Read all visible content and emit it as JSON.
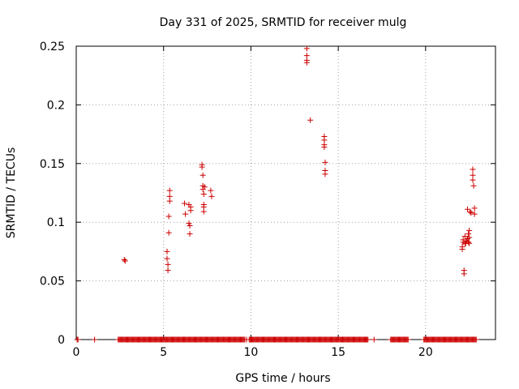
{
  "chart_data": {
    "type": "scatter",
    "title": "Day 331 of 2025, SRMTID for receiver mulg",
    "xlabel": "GPS time / hours",
    "ylabel": "SRMTID / TECUs",
    "xlim": [
      0,
      24
    ],
    "ylim": [
      0,
      0.25
    ],
    "xticks": [
      0,
      5,
      10,
      15,
      20
    ],
    "xtick_labels": [
      "0",
      "5",
      "10",
      "15",
      "20"
    ],
    "yticks": [
      0,
      0.05,
      0.1,
      0.15,
      0.2,
      0.25
    ],
    "ytick_labels": [
      "0",
      "0.05",
      "0.1",
      "0.15",
      "0.2",
      "0.25"
    ],
    "grid": true,
    "marker": "+",
    "color": "#cc0000",
    "series": [
      {
        "name": "SRMTID",
        "points": [
          [
            2.75,
            0.068
          ],
          [
            2.8,
            0.067
          ],
          [
            5.2,
            0.075
          ],
          [
            5.2,
            0.069
          ],
          [
            5.25,
            0.064
          ],
          [
            5.25,
            0.059
          ],
          [
            5.3,
            0.091
          ],
          [
            5.3,
            0.105
          ],
          [
            5.35,
            0.118
          ],
          [
            5.35,
            0.122
          ],
          [
            5.35,
            0.127
          ],
          [
            6.2,
            0.116
          ],
          [
            6.25,
            0.107
          ],
          [
            6.45,
            0.115
          ],
          [
            6.45,
            0.099
          ],
          [
            6.5,
            0.097
          ],
          [
            6.5,
            0.09
          ],
          [
            6.55,
            0.113
          ],
          [
            6.55,
            0.11
          ],
          [
            7.2,
            0.149
          ],
          [
            7.2,
            0.147
          ],
          [
            7.25,
            0.14
          ],
          [
            7.25,
            0.131
          ],
          [
            7.25,
            0.128
          ],
          [
            7.3,
            0.124
          ],
          [
            7.3,
            0.115
          ],
          [
            7.3,
            0.113
          ],
          [
            7.3,
            0.109
          ],
          [
            7.35,
            0.13
          ],
          [
            7.7,
            0.127
          ],
          [
            7.75,
            0.122
          ],
          [
            13.2,
            0.248
          ],
          [
            13.2,
            0.242
          ],
          [
            13.2,
            0.238
          ],
          [
            13.2,
            0.236
          ],
          [
            13.4,
            0.187
          ],
          [
            14.2,
            0.173
          ],
          [
            14.2,
            0.17
          ],
          [
            14.2,
            0.166
          ],
          [
            14.2,
            0.164
          ],
          [
            14.25,
            0.151
          ],
          [
            14.25,
            0.144
          ],
          [
            14.25,
            0.141
          ],
          [
            22.1,
            0.079
          ],
          [
            22.1,
            0.077
          ],
          [
            22.15,
            0.083
          ],
          [
            22.15,
            0.085
          ],
          [
            22.2,
            0.059
          ],
          [
            22.2,
            0.056
          ],
          [
            22.25,
            0.082
          ],
          [
            22.25,
            0.088
          ],
          [
            22.3,
            0.082
          ],
          [
            22.35,
            0.084
          ],
          [
            22.4,
            0.111
          ],
          [
            22.4,
            0.086
          ],
          [
            22.45,
            0.083
          ],
          [
            22.45,
            0.09
          ],
          [
            22.5,
            0.093
          ],
          [
            22.5,
            0.087
          ],
          [
            22.5,
            0.082
          ],
          [
            22.55,
            0.109
          ],
          [
            22.6,
            0.108
          ],
          [
            22.7,
            0.145
          ],
          [
            22.7,
            0.14
          ],
          [
            22.7,
            0.136
          ],
          [
            22.75,
            0.131
          ],
          [
            22.8,
            0.112
          ],
          [
            22.8,
            0.107
          ]
        ],
        "zero_ranges": [
          [
            2.4,
            9.65
          ],
          [
            9.9,
            16.7
          ],
          [
            18.0,
            19.0
          ],
          [
            19.9,
            22.9
          ]
        ],
        "zero_points": [
          0.05,
          0.1,
          1.05,
          9.75,
          10.0,
          17.05
        ]
      }
    ]
  }
}
